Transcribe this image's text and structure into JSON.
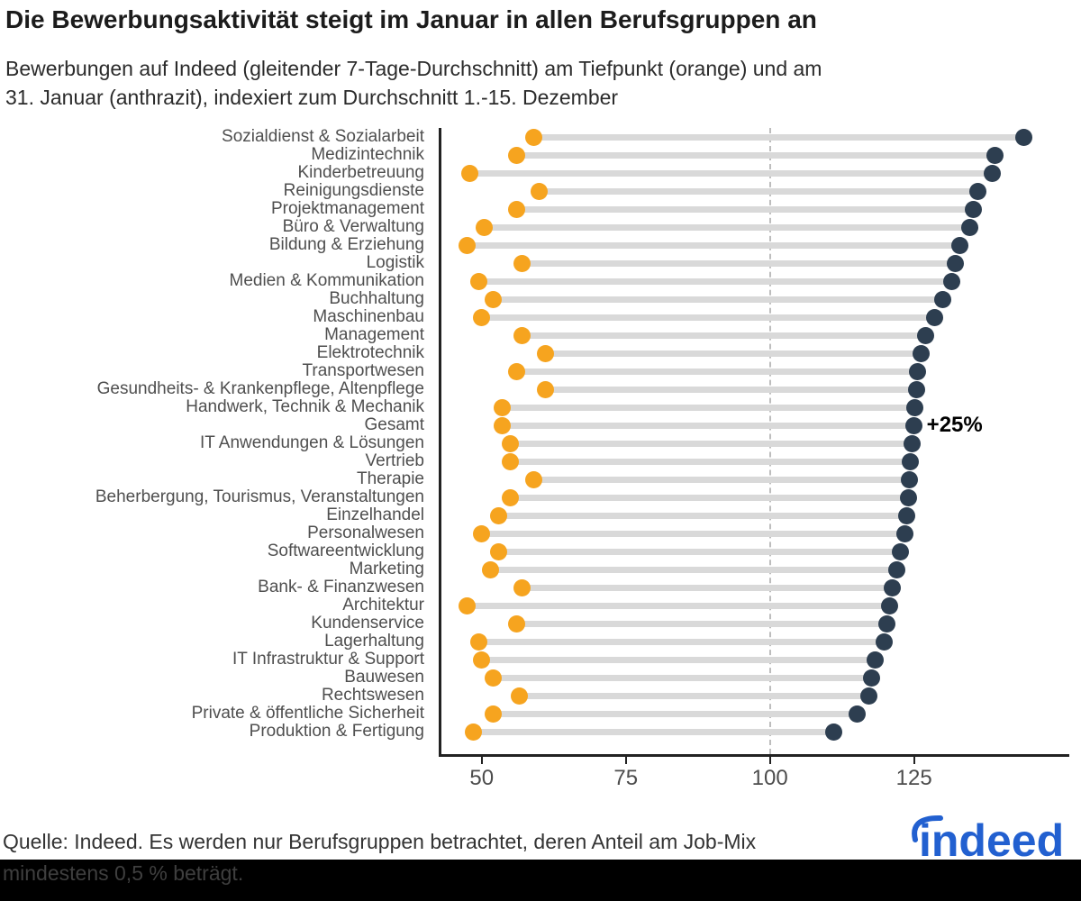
{
  "title": "Die Bewerbungsaktivität steigt im Januar in allen Berufsgruppen an",
  "subtitle": {
    "line1": "Bewerbungen auf Indeed (gleitender 7-Tage-Durchschnitt) am Tiefpunkt (orange) und am",
    "line2": "31. Januar (anthrazit), indexiert zum Durchschnitt 1.-15. Dezember"
  },
  "annotation": "+25%",
  "source": {
    "line1": "Quelle: Indeed. Es werden nur Berufsgruppen betrachtet, deren Anteil am Job-Mix",
    "line2": "mindestens 0,5 % beträgt."
  },
  "logo_text": "indeed",
  "colors": {
    "orange": "#F6A41F",
    "anthracite": "#2D3E50",
    "connector": "#D9D9D9",
    "dashed_line": "#BDBDBD",
    "axis": "#222222",
    "indeed_blue": "#2260D0",
    "footer_band": "#000000"
  },
  "chart_data": {
    "type": "dumbbell",
    "xlabel": "",
    "ylabel": "",
    "x_ticks": [
      50,
      75,
      100,
      125
    ],
    "x_range": [
      43,
      152.4
    ],
    "reference_line": 100,
    "grid": false,
    "series": [
      {
        "name": "Tiefpunkt",
        "color_key": "orange"
      },
      {
        "name": "31. Januar",
        "color_key": "anthracite"
      }
    ],
    "annotation_row": "Gesamt",
    "rows": [
      {
        "label": "Sozialdienst & Sozialarbeit",
        "tiefpunkt": 59,
        "jan31": 144
      },
      {
        "label": "Medizintechnik",
        "tiefpunkt": 56,
        "jan31": 139
      },
      {
        "label": "Kinderbetreuung",
        "tiefpunkt": 48,
        "jan31": 138.5
      },
      {
        "label": "Reinigungsdienste",
        "tiefpunkt": 60,
        "jan31": 136
      },
      {
        "label": "Projektmanagement",
        "tiefpunkt": 56,
        "jan31": 135.3
      },
      {
        "label": "Büro & Verwaltung",
        "tiefpunkt": 50.5,
        "jan31": 134.7
      },
      {
        "label": "Bildung & Erziehung",
        "tiefpunkt": 47.5,
        "jan31": 133
      },
      {
        "label": "Logistik",
        "tiefpunkt": 57,
        "jan31": 132.2
      },
      {
        "label": "Medien & Kommunikation",
        "tiefpunkt": 49.5,
        "jan31": 131.5
      },
      {
        "label": "Buchhaltung",
        "tiefpunkt": 52,
        "jan31": 130
      },
      {
        "label": "Maschinenbau",
        "tiefpunkt": 50,
        "jan31": 128.5
      },
      {
        "label": "Management",
        "tiefpunkt": 57,
        "jan31": 127
      },
      {
        "label": "Elektrotechnik",
        "tiefpunkt": 61,
        "jan31": 126.3
      },
      {
        "label": "Transportwesen",
        "tiefpunkt": 56,
        "jan31": 125.6
      },
      {
        "label": "Gesundheits- & Krankenpflege, Altenpflege",
        "tiefpunkt": 61,
        "jan31": 125.4
      },
      {
        "label": "Handwerk, Technik & Mechanik",
        "tiefpunkt": 53.5,
        "jan31": 125.2
      },
      {
        "label": "Gesamt",
        "tiefpunkt": 53.5,
        "jan31": 125
      },
      {
        "label": "IT Anwendungen & Lösungen",
        "tiefpunkt": 55,
        "jan31": 124.6
      },
      {
        "label": "Vertrieb",
        "tiefpunkt": 55,
        "jan31": 124.4
      },
      {
        "label": "Therapie",
        "tiefpunkt": 59,
        "jan31": 124.2
      },
      {
        "label": "Beherbergung, Tourismus, Veranstaltungen",
        "tiefpunkt": 55,
        "jan31": 124
      },
      {
        "label": "Einzelhandel",
        "tiefpunkt": 53,
        "jan31": 123.7
      },
      {
        "label": "Personalwesen",
        "tiefpunkt": 50,
        "jan31": 123.4
      },
      {
        "label": "Softwareentwicklung",
        "tiefpunkt": 53,
        "jan31": 122.6
      },
      {
        "label": "Marketing",
        "tiefpunkt": 51.5,
        "jan31": 122
      },
      {
        "label": "Bank- & Finanzwesen",
        "tiefpunkt": 57,
        "jan31": 121.2
      },
      {
        "label": "Architektur",
        "tiefpunkt": 47.5,
        "jan31": 120.8
      },
      {
        "label": "Kundenservice",
        "tiefpunkt": 56,
        "jan31": 120.3
      },
      {
        "label": "Lagerhaltung",
        "tiefpunkt": 49.5,
        "jan31": 119.8
      },
      {
        "label": "IT Infrastruktur & Support",
        "tiefpunkt": 50,
        "jan31": 118.2
      },
      {
        "label": "Bauwesen",
        "tiefpunkt": 52,
        "jan31": 117.7
      },
      {
        "label": "Rechtswesen",
        "tiefpunkt": 56.5,
        "jan31": 117.2
      },
      {
        "label": "Private & öffentliche Sicherheit",
        "tiefpunkt": 52,
        "jan31": 115.2
      },
      {
        "label": "Produktion & Fertigung",
        "tiefpunkt": 48.5,
        "jan31": 111
      }
    ]
  }
}
